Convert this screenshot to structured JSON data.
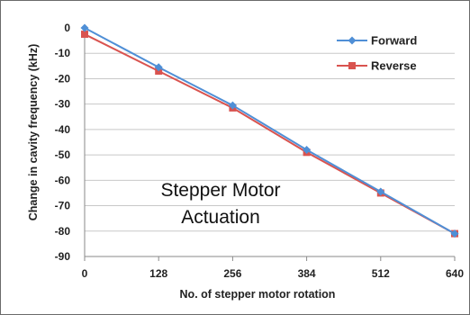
{
  "chart_data": {
    "type": "line",
    "title": "",
    "xlabel": "No. of stepper motor rotation",
    "ylabel": "Change in cavity frequency (kHz)",
    "x": [
      0,
      128,
      256,
      384,
      512,
      640
    ],
    "x_tick_labels": [
      "0",
      "128",
      "256",
      "384",
      "512",
      "640"
    ],
    "y_tick_labels": [
      "0",
      "-10",
      "-20",
      "-30",
      "-40",
      "-50",
      "-60",
      "-70",
      "-80",
      "-90"
    ],
    "ylim": [
      -90,
      0
    ],
    "xlim": [
      0,
      640
    ],
    "grid": "horizontal",
    "legend_placement": "top-right",
    "annotation_lines": [
      "Stepper Motor",
      "Actuation"
    ],
    "series": [
      {
        "name": "Forward",
        "color": "#4f8fd6",
        "marker": "diamond",
        "values": [
          0,
          -15.5,
          -30.5,
          -48,
          -64.5,
          -81
        ]
      },
      {
        "name": "Reverse",
        "color": "#d9534f",
        "marker": "square",
        "values": [
          -2.5,
          -17,
          -31.5,
          -49,
          -65,
          -81
        ]
      }
    ]
  }
}
